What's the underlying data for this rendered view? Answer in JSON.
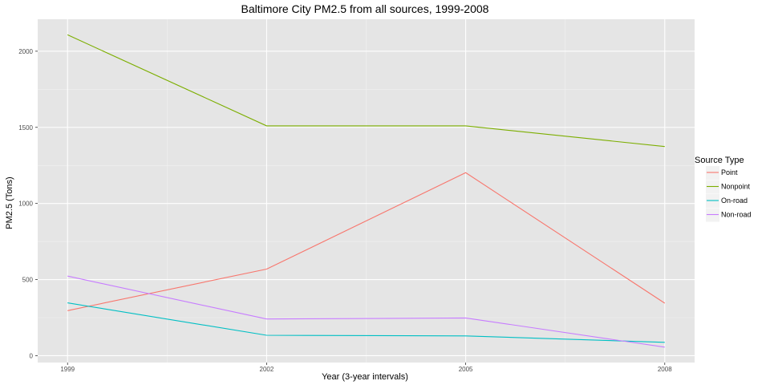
{
  "chart_data": {
    "type": "line",
    "title": "Baltimore City PM2.5 from all sources, 1999-2008",
    "xlabel": "Year (3-year intervals)",
    "ylabel": "PM2.5 (Tons)",
    "x": [
      1999,
      2002,
      2005,
      2008
    ],
    "x_tick_labels": [
      "1999",
      "2002",
      "2005",
      "2008"
    ],
    "y_ticks": [
      0,
      500,
      1000,
      1500,
      2000
    ],
    "y_tick_labels": [
      "0",
      "500",
      "1000",
      "1500",
      "2000"
    ],
    "xlim": [
      1998.55,
      2008.45
    ],
    "ylim": [
      -45,
      2210
    ],
    "grid": true,
    "legend_title": "Source Type",
    "legend_position": "right",
    "series": [
      {
        "name": "Point",
        "color": "#F8766D",
        "values": [
          296,
          569,
          1202,
          345
        ]
      },
      {
        "name": "Nonpoint",
        "color": "#7CAE00",
        "values": [
          2108,
          1510,
          1510,
          1374
        ]
      },
      {
        "name": "On-road",
        "color": "#00BFC4",
        "values": [
          347,
          134,
          130,
          88
        ]
      },
      {
        "name": "Non-road",
        "color": "#C77CFF",
        "values": [
          523,
          241,
          248,
          56
        ]
      }
    ]
  }
}
